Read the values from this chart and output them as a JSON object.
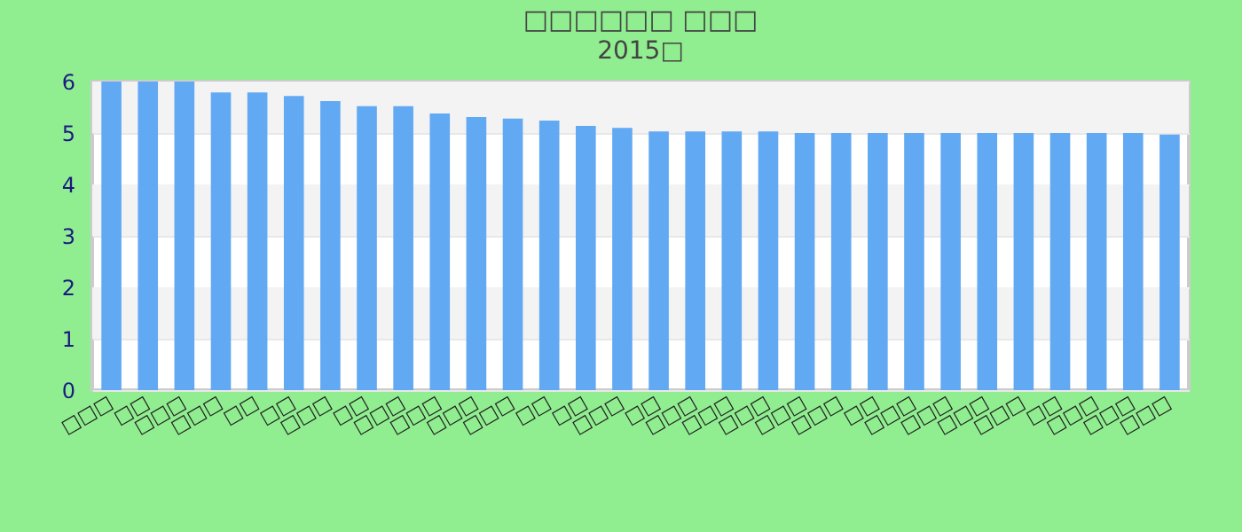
{
  "chart_data": {
    "type": "bar",
    "title": "□□□□□□ □□□",
    "subtitle": "2015□",
    "categories": [
      "□□□",
      "□□",
      "□□□",
      "□□□",
      "□□",
      "□□",
      "□□□",
      "□□",
      "□□□",
      "□□□",
      "□□□",
      "□□□",
      "□□",
      "□□",
      "□□□",
      "□□",
      "□□□",
      "□□□",
      "□□□",
      "□□□",
      "□□□",
      "□□",
      "□□□",
      "□□□",
      "□□□",
      "□□□",
      "□□",
      "□□□",
      "□□□",
      "□□□"
    ],
    "values": [
      6.0,
      6.0,
      6.0,
      5.79,
      5.79,
      5.72,
      5.62,
      5.52,
      5.52,
      5.38,
      5.31,
      5.28,
      5.24,
      5.14,
      5.1,
      5.03,
      5.03,
      5.03,
      5.03,
      5.0,
      5.0,
      5.0,
      5.0,
      5.0,
      5.0,
      5.0,
      5.0,
      5.0,
      5.0,
      4.97
    ],
    "color": "#62a9f4",
    "ylim": [
      0,
      6
    ],
    "yticks": [
      0,
      1,
      2,
      3,
      4,
      5,
      6
    ],
    "grid": "y"
  }
}
